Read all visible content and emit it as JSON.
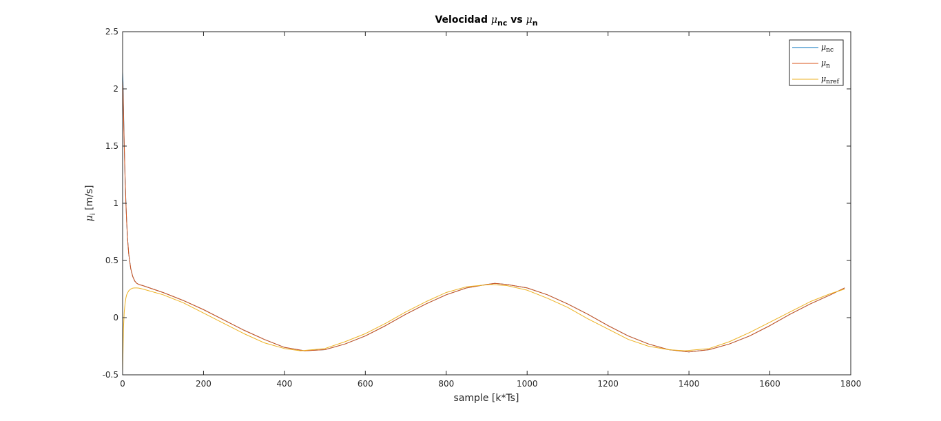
{
  "chart_data": {
    "type": "line",
    "title": {
      "prefix": "Velocidad ",
      "sym1": "μ",
      "sub1": "nc",
      "middle": " vs ",
      "sym2": "μ",
      "sub2": "n"
    },
    "xlabel": "sample [k*Ts]",
    "ylabel": {
      "sym": "μ",
      "sub": "i",
      "rest": " [m/s]"
    },
    "xlim": [
      0,
      1800
    ],
    "ylim": [
      -0.5,
      2.5
    ],
    "xticks": [
      0,
      200,
      400,
      600,
      800,
      1000,
      1200,
      1400,
      1600,
      1800
    ],
    "xtick_labels": [
      "0",
      "200",
      "400",
      "600",
      "800",
      "1000",
      "1200",
      "1400",
      "1600",
      "1800"
    ],
    "yticks": [
      -0.5,
      0,
      0.5,
      1,
      1.5,
      2,
      2.5
    ],
    "ytick_labels": [
      "-0.5",
      "0",
      "0.5",
      "1",
      "1.5",
      "2",
      "2.5"
    ],
    "grid": false,
    "legend_position": "top-right",
    "series": [
      {
        "name": {
          "sym": "μ",
          "sub": "nc"
        },
        "color": "#0072BD",
        "x": [
          0,
          1,
          2,
          4,
          6,
          8,
          10,
          12,
          15,
          20,
          25,
          30,
          35,
          40,
          50,
          100,
          150,
          200,
          250,
          300,
          350,
          400,
          450,
          500,
          550,
          600,
          650,
          700,
          750,
          800,
          850,
          900,
          920,
          950,
          1000,
          1050,
          1100,
          1150,
          1200,
          1250,
          1300,
          1350,
          1400,
          1450,
          1500,
          1550,
          1600,
          1650,
          1700,
          1750,
          1785
        ],
        "y": [
          2.15,
          2.06,
          1.86,
          1.52,
          1.24,
          1.02,
          0.84,
          0.7,
          0.56,
          0.43,
          0.36,
          0.32,
          0.3,
          0.29,
          0.28,
          0.22,
          0.15,
          0.07,
          -0.02,
          -0.11,
          -0.19,
          -0.26,
          -0.29,
          -0.28,
          -0.23,
          -0.16,
          -0.07,
          0.03,
          0.12,
          0.2,
          0.26,
          0.29,
          0.3,
          0.29,
          0.26,
          0.2,
          0.12,
          0.03,
          -0.07,
          -0.16,
          -0.23,
          -0.28,
          -0.3,
          -0.28,
          -0.23,
          -0.16,
          -0.07,
          0.03,
          0.12,
          0.2,
          0.26
        ]
      },
      {
        "name": {
          "sym": "μ",
          "sub": "n"
        },
        "color": "#D95319",
        "x": [
          0,
          1,
          2,
          4,
          6,
          8,
          10,
          12,
          15,
          20,
          25,
          30,
          35,
          40,
          50,
          100,
          150,
          200,
          250,
          300,
          350,
          400,
          450,
          500,
          550,
          600,
          650,
          700,
          750,
          800,
          850,
          900,
          920,
          950,
          1000,
          1050,
          1100,
          1150,
          1200,
          1250,
          1300,
          1350,
          1400,
          1450,
          1500,
          1550,
          1600,
          1650,
          1700,
          1750,
          1785
        ],
        "y": [
          2.08,
          2.0,
          1.82,
          1.5,
          1.23,
          1.01,
          0.84,
          0.7,
          0.56,
          0.43,
          0.36,
          0.32,
          0.3,
          0.29,
          0.28,
          0.22,
          0.15,
          0.07,
          -0.02,
          -0.11,
          -0.19,
          -0.26,
          -0.29,
          -0.28,
          -0.23,
          -0.16,
          -0.07,
          0.03,
          0.12,
          0.2,
          0.26,
          0.29,
          0.3,
          0.29,
          0.26,
          0.2,
          0.12,
          0.03,
          -0.07,
          -0.16,
          -0.23,
          -0.28,
          -0.3,
          -0.28,
          -0.23,
          -0.16,
          -0.07,
          0.03,
          0.12,
          0.2,
          0.26
        ]
      },
      {
        "name": {
          "sym": "μ",
          "sub": "nref"
        },
        "color": "#EDB120",
        "x": [
          0,
          1,
          2,
          4,
          6,
          8,
          10,
          15,
          20,
          25,
          30,
          35,
          40,
          50,
          100,
          150,
          200,
          250,
          300,
          350,
          400,
          440,
          500,
          550,
          600,
          650,
          700,
          750,
          800,
          850,
          910,
          950,
          1000,
          1050,
          1100,
          1150,
          1200,
          1250,
          1300,
          1350,
          1390,
          1450,
          1500,
          1550,
          1600,
          1650,
          1700,
          1750,
          1785
        ],
        "y": [
          -0.48,
          -0.3,
          -0.1,
          0.05,
          0.12,
          0.17,
          0.2,
          0.235,
          0.25,
          0.258,
          0.26,
          0.26,
          0.258,
          0.25,
          0.2,
          0.13,
          0.04,
          -0.05,
          -0.14,
          -0.22,
          -0.27,
          -0.29,
          -0.27,
          -0.21,
          -0.14,
          -0.05,
          0.05,
          0.14,
          0.22,
          0.27,
          0.29,
          0.28,
          0.24,
          0.17,
          0.09,
          -0.01,
          -0.1,
          -0.19,
          -0.25,
          -0.28,
          -0.29,
          -0.27,
          -0.21,
          -0.13,
          -0.04,
          0.05,
          0.14,
          0.21,
          0.25
        ]
      }
    ]
  }
}
